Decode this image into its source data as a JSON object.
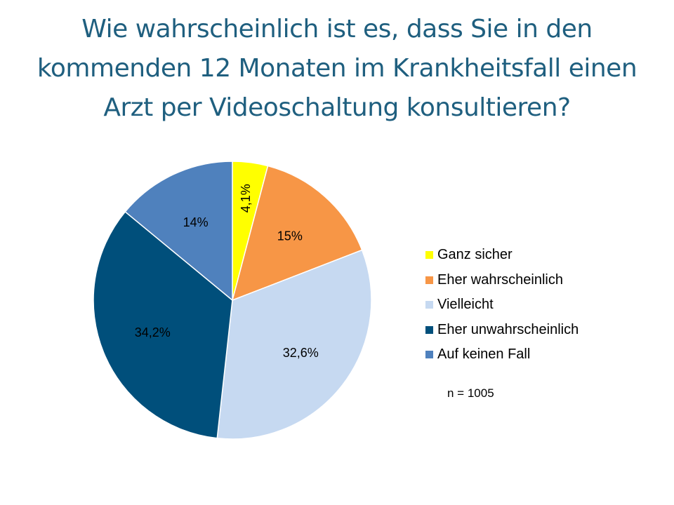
{
  "title": {
    "lines": [
      "Wie wahrscheinlich ist es, dass Sie in den",
      "kommenden 12 Monaten im Krankheitsfall einen",
      "Arzt per Videoschaltung konsultieren?"
    ]
  },
  "note": "n = 1005",
  "chart_data": {
    "type": "pie",
    "title": "Wie wahrscheinlich ist es, dass Sie in den kommenden 12 Monaten im Krankheitsfall einen Arzt per Videoschaltung konsultieren?",
    "slices": [
      {
        "name": "Ganz sicher",
        "value": 4.1,
        "label": "4,1%",
        "color": "#ffff00"
      },
      {
        "name": "Eher wahrscheinlich",
        "value": 15,
        "label": "15%",
        "color": "#f79646"
      },
      {
        "name": "Vielleicht",
        "value": 32.6,
        "label": "32,6%",
        "color": "#c6d9f1"
      },
      {
        "name": "Eher unwahrscheinlich",
        "value": 34.2,
        "label": "34,2%",
        "color": "#004f7b"
      },
      {
        "name": "Auf keinen Fall",
        "value": 14,
        "label": "14%",
        "color": "#4f81bd"
      }
    ],
    "legend_position": "right",
    "start_angle": "12 o'clock",
    "direction": "clockwise"
  }
}
